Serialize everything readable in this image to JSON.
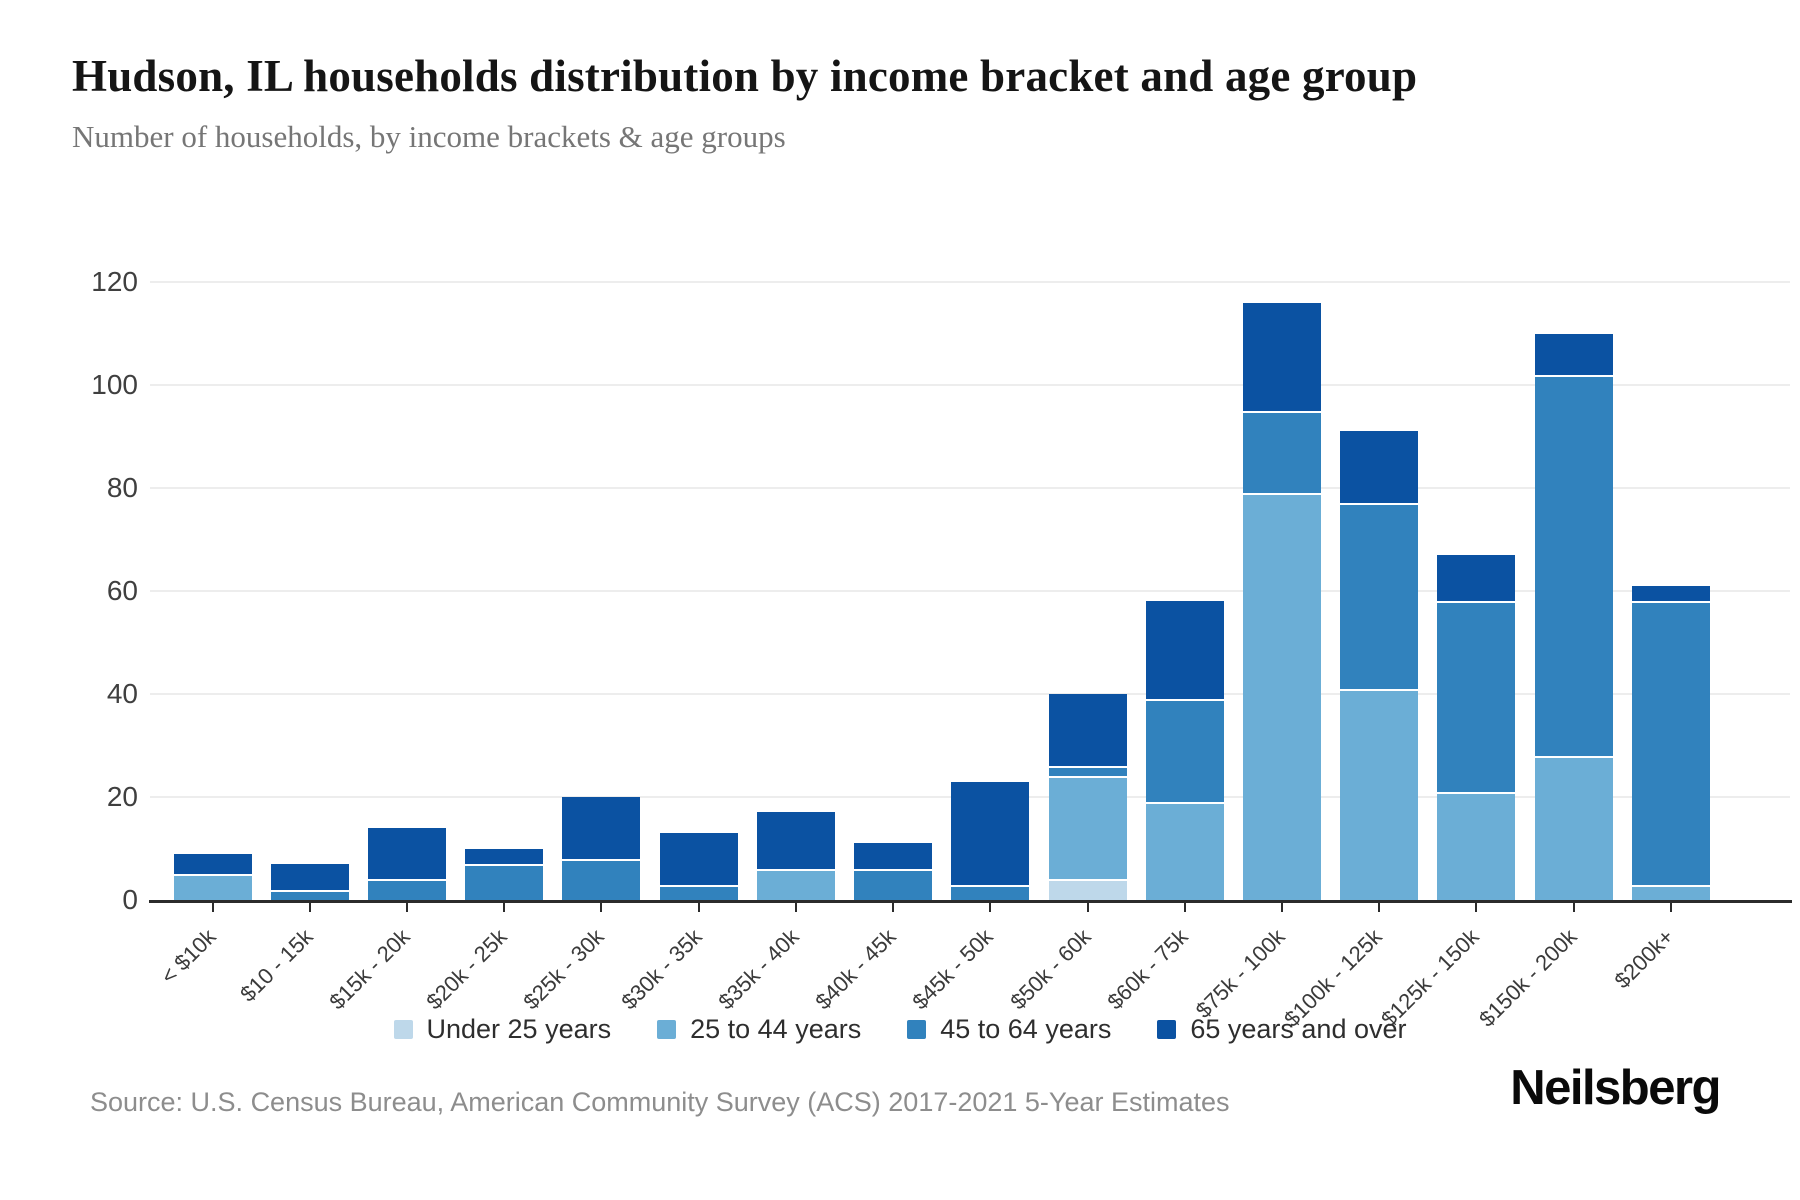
{
  "header": {
    "title": "Hudson, IL households distribution by income bracket and age group",
    "subtitle": "Number of households, by income brackets & age groups"
  },
  "chart_data": {
    "type": "bar",
    "stacked": true,
    "title": "Hudson, IL households distribution by income bracket and age group",
    "xlabel": "",
    "ylabel": "Number of households",
    "ylim": [
      0,
      120
    ],
    "y_ticks": [
      0,
      20,
      40,
      60,
      80,
      100,
      120
    ],
    "grid": "horizontal",
    "legend_position": "bottom",
    "categories": [
      "< $10k",
      "$10 - 15k",
      "$15k - 20k",
      "$20k - 25k",
      "$25k - 30k",
      "$30k - 35k",
      "$35k - 40k",
      "$40k - 45k",
      "$45k - 50k",
      "$50k - 60k",
      "$60k - 75k",
      "$75k - 100k",
      "$100k - 125k",
      "$125k - 150k",
      "$150k - 200k",
      "$200k+"
    ],
    "series": [
      {
        "name": "Under 25 years",
        "color": "#bed8ea",
        "values": [
          0,
          0,
          0,
          0,
          0,
          0,
          0,
          0,
          0,
          4,
          0,
          0,
          0,
          0,
          0,
          0
        ]
      },
      {
        "name": "25 to 44 years",
        "color": "#6baed6",
        "values": [
          5,
          0,
          0,
          0,
          0,
          0,
          6,
          0,
          0,
          20,
          19,
          79,
          41,
          21,
          28,
          3
        ]
      },
      {
        "name": "45 to 64 years",
        "color": "#3182bd",
        "values": [
          0,
          2,
          4,
          7,
          8,
          3,
          0,
          6,
          3,
          2,
          20,
          16,
          36,
          37,
          74,
          55
        ]
      },
      {
        "name": "65 years and over",
        "color": "#0b52a2",
        "values": [
          4,
          5,
          10,
          3,
          12,
          10,
          11,
          5,
          20,
          14,
          19,
          21,
          14,
          9,
          8,
          3
        ]
      }
    ],
    "totals": [
      9,
      7,
      14,
      10,
      20,
      13,
      17,
      11,
      23,
      40,
      58,
      116,
      91,
      67,
      110,
      61
    ]
  },
  "footer": {
    "source": "Source: U.S. Census Bureau, American Community Survey (ACS) 2017-2021 5-Year Estimates",
    "logo": "Neilsberg"
  }
}
